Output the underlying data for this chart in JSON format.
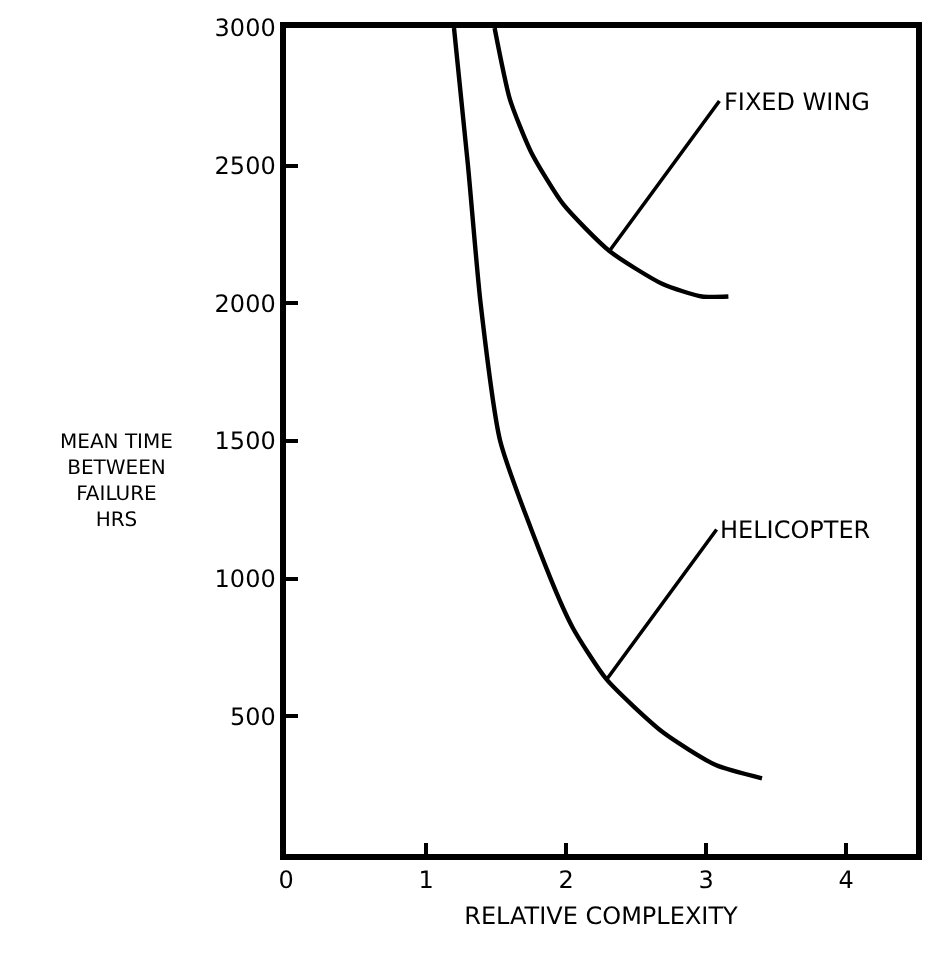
{
  "chart_data": {
    "type": "line",
    "xlabel": "RELATIVE COMPLEXITY",
    "ylabel": "MEAN TIME\nBETWEEN\nFAILURE\nHRS",
    "xlim": [
      0,
      4.5
    ],
    "xticks": [
      {
        "value": 0,
        "label": "0"
      },
      1,
      2,
      3,
      4
    ],
    "ylim": [
      0,
      3000
    ],
    "yticks": [
      500,
      1000,
      1500,
      2000,
      2500,
      3000
    ],
    "marker": "none",
    "line_style": "solid",
    "series": [
      {
        "color": "#000000",
        "x": [
          1.49,
          1.6,
          1.75,
          1.98,
          2.31,
          2.69,
          2.97,
          3.16
        ],
        "values": [
          3000,
          2740,
          2550,
          2360,
          2190,
          2070,
          2025,
          2025
        ]
      },
      {
        "color": "#000000",
        "x": [
          1.2,
          1.3,
          1.39,
          1.53,
          1.89,
          2.05,
          2.29,
          2.69,
          3.07,
          3.4
        ],
        "values": [
          3000,
          2500,
          2000,
          1500,
          1000,
          820,
          634,
          443,
          323,
          275
        ]
      }
    ],
    "annotations": [
      {
        "text": "FIXED WING",
        "x": 2.31,
        "y": 2190
      },
      {
        "text": "HELICOPTER",
        "x": 2.29,
        "y": 634
      }
    ]
  }
}
